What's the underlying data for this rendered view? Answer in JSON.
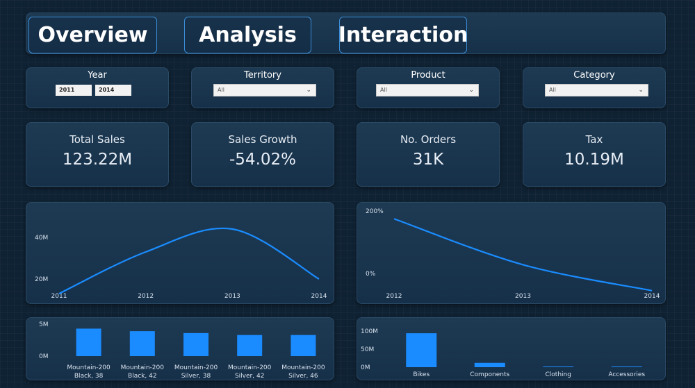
{
  "nav": {
    "overview": "Overview",
    "analysis": "Analysis",
    "interaction": "Interaction"
  },
  "slicers": {
    "year": {
      "title": "Year",
      "from": "2011",
      "to": "2014"
    },
    "territory": {
      "title": "Territory",
      "value": "All"
    },
    "product": {
      "title": "Product",
      "value": "All"
    },
    "category": {
      "title": "Category",
      "value": "All"
    }
  },
  "kpis": {
    "total_sales": {
      "label": "Total Sales",
      "value": "123.22M"
    },
    "sales_growth": {
      "label": "Sales Growth",
      "value": "-54.02%"
    },
    "orders": {
      "label": "No. Orders",
      "value": "31K"
    },
    "tax": {
      "label": "Tax",
      "value": "10.19M"
    }
  },
  "colors": {
    "accent": "#1a8cff",
    "panel": "#1a3550",
    "background": "#0f2233"
  },
  "chart_data": [
    {
      "type": "line",
      "x": [
        "2011",
        "2012",
        "2013",
        "2014"
      ],
      "values": [
        13,
        33,
        44,
        20
      ],
      "y_ticks": [
        {
          "value": 20,
          "label": "20M"
        },
        {
          "value": 40,
          "label": "40M"
        }
      ],
      "ylim": [
        10,
        50
      ]
    },
    {
      "type": "line",
      "x": [
        "2012",
        "2013",
        "2014"
      ],
      "values": [
        175,
        28,
        -55
      ],
      "y_ticks": [
        {
          "value": 0,
          "label": "0%"
        },
        {
          "value": 200,
          "label": "200%"
        }
      ],
      "ylim": [
        -100,
        200
      ]
    },
    {
      "type": "bar",
      "categories": [
        [
          "Mountain-200",
          "Black, 38"
        ],
        [
          "Mountain-200",
          "Black, 42"
        ],
        [
          "Mountain-200",
          "Silver, 38"
        ],
        [
          "Mountain-200",
          "Silver, 42"
        ],
        [
          "Mountain-200",
          "Silver, 46"
        ]
      ],
      "values": [
        4.3,
        3.9,
        3.6,
        3.3,
        3.3
      ],
      "y_ticks": [
        {
          "value": 0,
          "label": "0M"
        },
        {
          "value": 5,
          "label": "5M"
        }
      ],
      "ylim": [
        0,
        5
      ]
    },
    {
      "type": "bar",
      "categories": [
        "Bikes",
        "Components",
        "Clothing",
        "Accessories"
      ],
      "values": [
        94,
        12,
        1.5,
        1
      ],
      "y_ticks": [
        {
          "value": 0,
          "label": "0M"
        },
        {
          "value": 50,
          "label": "50M"
        },
        {
          "value": 100,
          "label": "100M"
        }
      ],
      "ylim": [
        0,
        100
      ]
    }
  ]
}
